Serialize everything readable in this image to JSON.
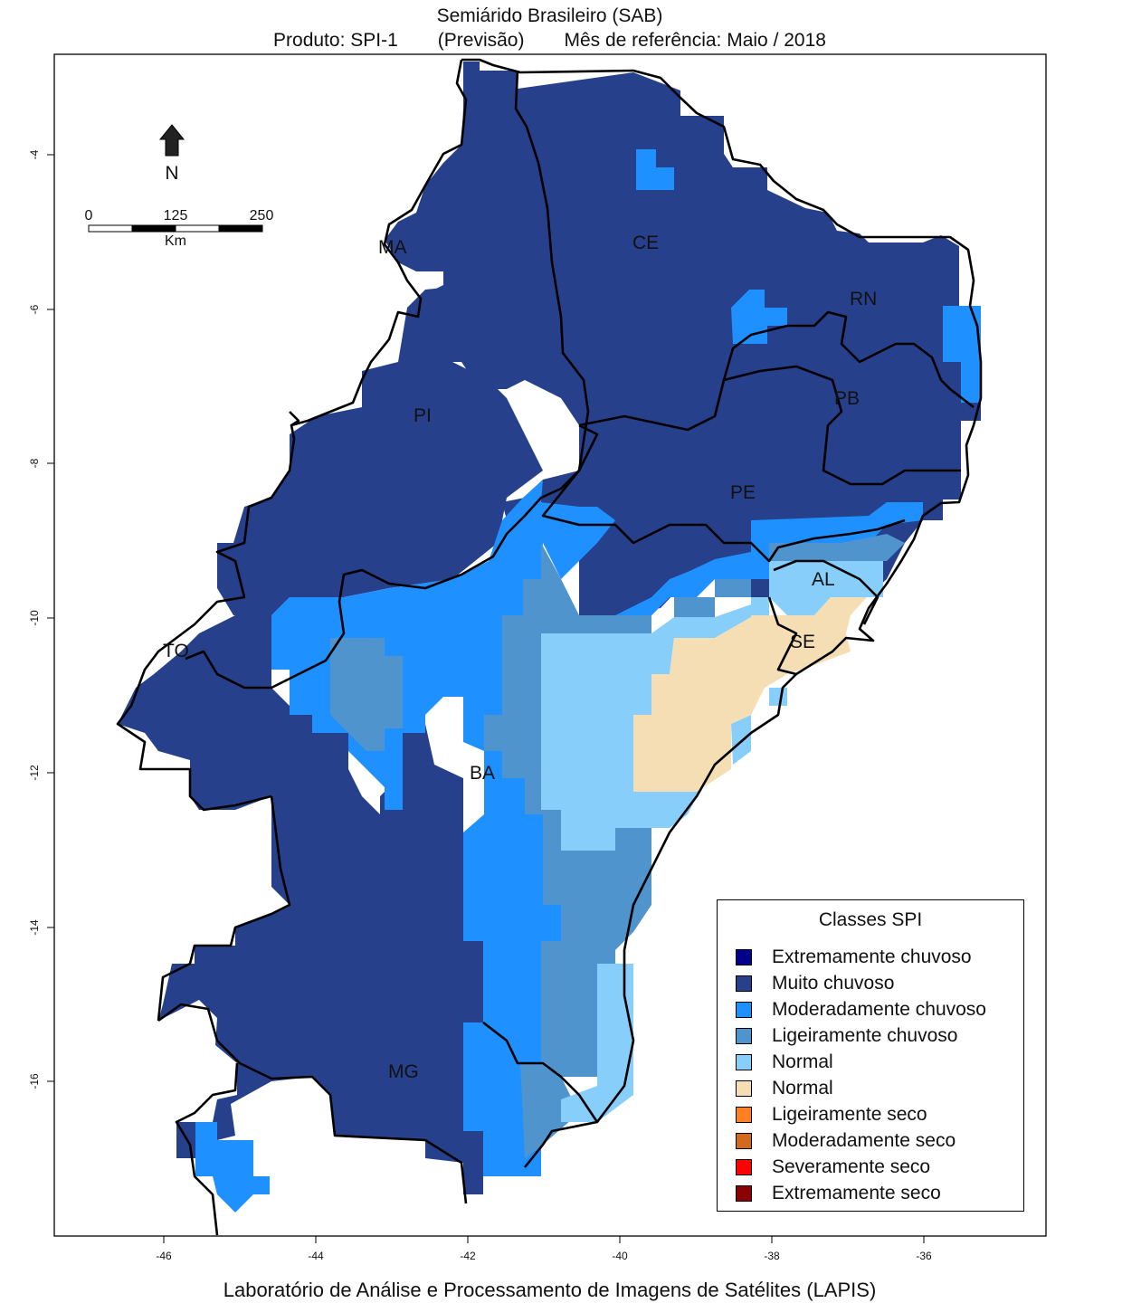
{
  "title": {
    "line1": "Semiárido Brasileiro (SAB)",
    "product": "Produto: SPI-1",
    "forecast": "(Previsão)",
    "reference": "Mês de referência:  Maio / 2018"
  },
  "axes": {
    "y_ticks": [
      "-4",
      "-6",
      "-8",
      "-10",
      "-12",
      "-14",
      "-16"
    ],
    "x_ticks": [
      "-46",
      "-44",
      "-42",
      "-40",
      "-38",
      "-36"
    ]
  },
  "north_arrow": {
    "label": "N",
    "icon": "north-arrow-icon"
  },
  "scale_bar": {
    "ticks": [
      "0",
      "125",
      "250"
    ],
    "unit": "Km"
  },
  "states": [
    "MA",
    "CE",
    "RN",
    "PB",
    "PI",
    "PE",
    "AL",
    "SE",
    "TO",
    "BA",
    "MG"
  ],
  "legend": {
    "title": "Classes SPI",
    "items": [
      {
        "label": "Extremamente chuvoso",
        "color": "#00008b"
      },
      {
        "label": "Muito chuvoso",
        "color": "#27408b"
      },
      {
        "label": "Moderadamente chuvoso",
        "color": "#1e90ff"
      },
      {
        "label": "Ligeiramente chuvoso",
        "color": "#4f94cd"
      },
      {
        "label": "Normal",
        "color": "#87cefa"
      },
      {
        "label": "Normal",
        "color": "#f5deb3"
      },
      {
        "label": "Ligeiramente seco",
        "color": "#ff7f24"
      },
      {
        "label": "Moderadamente seco",
        "color": "#d2691e"
      },
      {
        "label": "Severamente seco",
        "color": "#ff0000"
      },
      {
        "label": "Extremamente seco",
        "color": "#8b0000"
      }
    ]
  },
  "footer": "Laboratório de Análise e Processamento de Imagens de Satélites (LAPIS)"
}
